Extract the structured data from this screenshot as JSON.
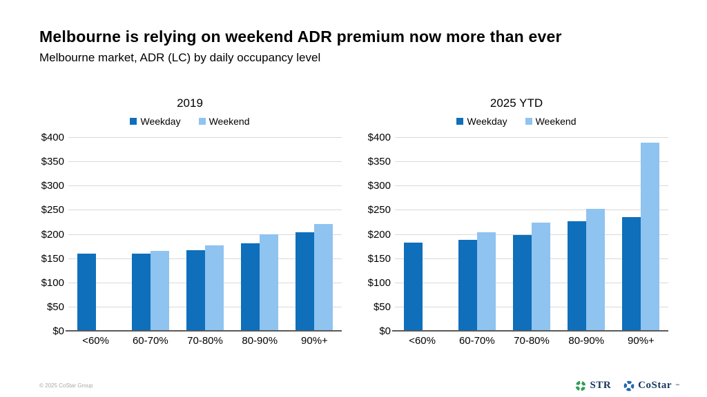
{
  "page": {
    "title": "Melbourne is relying on weekend ADR premium now more than ever",
    "subtitle": "Melbourne market, ADR (LC) by daily occupancy level"
  },
  "colors": {
    "weekday": "#0f6fba",
    "weekend": "#8fc3f0",
    "gridline": "#d9d9d9",
    "axis": "#595959",
    "str_logo_green": "#2f9e55",
    "costar_logo_blue": "#2268ae"
  },
  "chart_data": [
    {
      "type": "bar",
      "title": "2019",
      "categories": [
        "<60%",
        "60-70%",
        "70-80%",
        "80-90%",
        "90%+"
      ],
      "series": [
        {
          "name": "Weekday",
          "color": "#0f6fba",
          "values": [
            161,
            161,
            168,
            182,
            205
          ]
        },
        {
          "name": "Weekend",
          "color": "#8fc3f0",
          "values": [
            null,
            166,
            178,
            200,
            222
          ]
        }
      ],
      "xlabel": "",
      "ylabel": "",
      "ylim": [
        0,
        400
      ],
      "grid": true,
      "legend_position": "top",
      "yticks": [
        {
          "v": 0,
          "label": "$0"
        },
        {
          "v": 50,
          "label": "$50"
        },
        {
          "v": 100,
          "label": "$100"
        },
        {
          "v": 150,
          "label": "$150"
        },
        {
          "v": 200,
          "label": "$200"
        },
        {
          "v": 250,
          "label": "$250"
        },
        {
          "v": 300,
          "label": "$300"
        },
        {
          "v": 350,
          "label": "$350"
        },
        {
          "v": 400,
          "label": "$400"
        }
      ]
    },
    {
      "type": "bar",
      "title": "2025 YTD",
      "categories": [
        "<60%",
        "60-70%",
        "70-80%",
        "80-90%",
        "90%+"
      ],
      "series": [
        {
          "name": "Weekday",
          "color": "#0f6fba",
          "values": [
            184,
            190,
            199,
            228,
            237
          ]
        },
        {
          "name": "Weekend",
          "color": "#8fc3f0",
          "values": [
            null,
            205,
            225,
            254,
            390
          ]
        }
      ],
      "xlabel": "",
      "ylabel": "",
      "ylim": [
        0,
        400
      ],
      "grid": true,
      "legend_position": "top",
      "yticks": [
        {
          "v": 0,
          "label": "$0"
        },
        {
          "v": 50,
          "label": "$50"
        },
        {
          "v": 100,
          "label": "$100"
        },
        {
          "v": 150,
          "label": "$150"
        },
        {
          "v": 200,
          "label": "$200"
        },
        {
          "v": 250,
          "label": "$250"
        },
        {
          "v": 300,
          "label": "$300"
        },
        {
          "v": 350,
          "label": "$350"
        },
        {
          "v": 400,
          "label": "$400"
        }
      ]
    }
  ],
  "footer": {
    "copyright": "© 2025 CoStar Group",
    "logos": [
      {
        "name": "STR",
        "mark": ""
      },
      {
        "name": "CoStar",
        "mark": "™"
      }
    ]
  }
}
